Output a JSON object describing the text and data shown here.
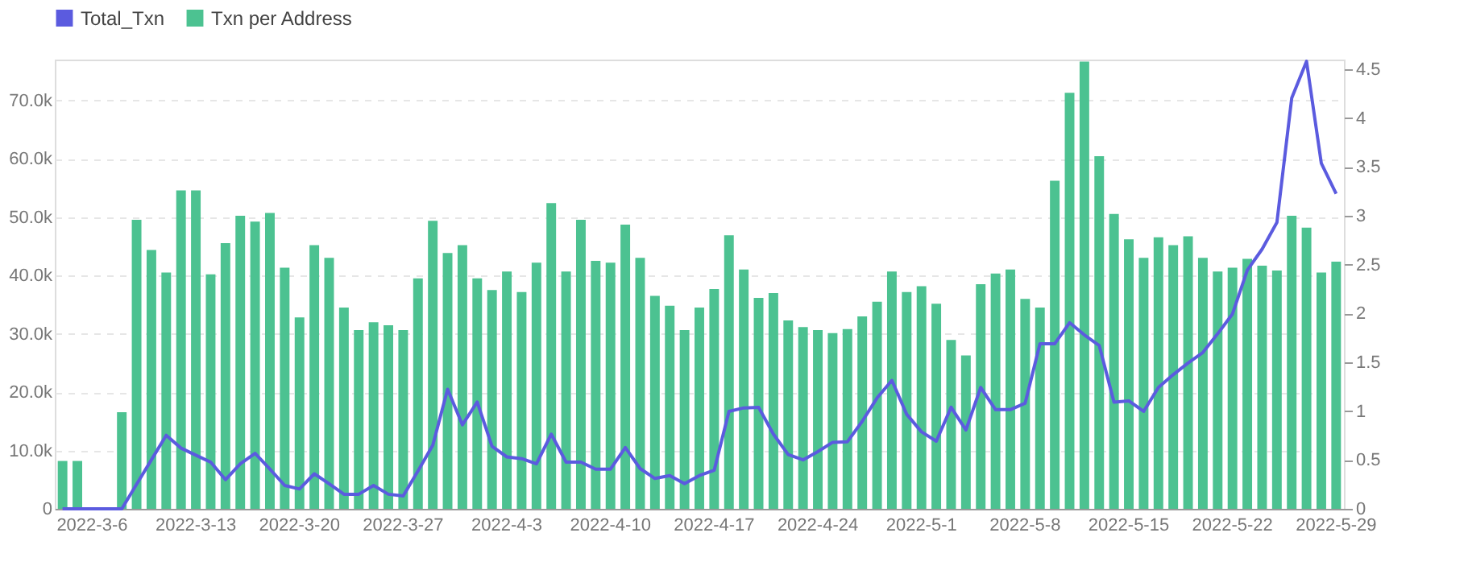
{
  "chart_data": {
    "type": "bar",
    "categories": [
      null,
      null,
      "2022-3-6",
      null,
      null,
      null,
      null,
      null,
      null,
      "2022-3-13",
      null,
      null,
      null,
      null,
      null,
      null,
      "2022-3-20",
      null,
      null,
      null,
      null,
      null,
      null,
      "2022-3-27",
      null,
      null,
      null,
      null,
      null,
      null,
      "2022-4-3",
      null,
      null,
      null,
      null,
      null,
      null,
      "2022-4-10",
      null,
      null,
      null,
      null,
      null,
      null,
      "2022-4-17",
      null,
      null,
      null,
      null,
      null,
      null,
      "2022-4-24",
      null,
      null,
      null,
      null,
      null,
      null,
      "2022-5-1",
      null,
      null,
      null,
      null,
      null,
      null,
      "2022-5-8",
      null,
      null,
      null,
      null,
      null,
      null,
      "2022-5-15",
      null,
      null,
      null,
      null,
      null,
      null,
      "2022-5-22",
      null,
      null,
      null,
      null,
      null,
      null,
      "2022-5-29"
    ],
    "series": [
      {
        "name": "Total_Txn",
        "type": "line",
        "color": "#5b5bdf",
        "values": [
          0,
          0,
          0,
          0,
          0,
          4200,
          8400,
          12600,
          10400,
          9200,
          8000,
          5000,
          7700,
          9500,
          6800,
          4000,
          3400,
          6000,
          4300,
          2500,
          2500,
          4000,
          2500,
          2200,
          6500,
          10900,
          20500,
          14400,
          18300,
          10700,
          8900,
          8600,
          7700,
          12800,
          8000,
          8000,
          6800,
          6800,
          10500,
          6900,
          5200,
          5700,
          4300,
          5700,
          6600,
          16700,
          17300,
          17400,
          12800,
          9300,
          8400,
          9800,
          11400,
          11500,
          15000,
          19000,
          22000,
          16200,
          13200,
          11600,
          17400,
          13500,
          20800,
          17000,
          17000,
          18100,
          28300,
          28300,
          31900,
          29800,
          28000,
          18300,
          18500,
          16700,
          20800,
          23000,
          25000,
          26800,
          30000,
          33400,
          40900,
          44500,
          49100,
          70400,
          76700,
          59200,
          54000
        ]
      },
      {
        "name": "Txn per Address",
        "axis": "y2",
        "color": "#4cc291",
        "values": [
          0.49,
          0.49,
          0,
          0,
          0.99,
          2.96,
          2.65,
          2.42,
          3.26,
          3.26,
          2.4,
          2.72,
          3.0,
          2.94,
          3.03,
          2.47,
          1.96,
          2.7,
          2.57,
          2.06,
          1.83,
          1.91,
          1.88,
          1.83,
          2.36,
          2.95,
          2.62,
          2.7,
          2.36,
          2.24,
          2.43,
          2.22,
          2.52,
          3.13,
          2.43,
          2.96,
          2.54,
          2.52,
          2.91,
          2.57,
          2.18,
          2.08,
          1.83,
          2.06,
          2.25,
          2.8,
          2.45,
          2.16,
          2.21,
          1.93,
          1.86,
          1.83,
          1.8,
          1.84,
          1.97,
          2.12,
          2.43,
          2.22,
          2.28,
          2.1,
          1.73,
          1.57,
          2.3,
          2.41,
          2.45,
          2.15,
          2.06,
          3.36,
          4.26,
          4.58,
          3.61,
          3.02,
          2.76,
          2.57,
          2.78,
          2.7,
          2.79,
          2.57,
          2.43,
          2.47,
          2.56,
          2.49,
          2.44,
          3.0,
          2.88,
          2.42,
          2.53
        ]
      }
    ],
    "ylim": [
      0,
      77000
    ],
    "yticks": [
      0,
      {
        "value": 10000,
        "label": "10.0k"
      },
      {
        "value": 20000,
        "label": "20.0k"
      },
      {
        "value": 30000,
        "label": "30.0k"
      },
      {
        "value": 40000,
        "label": "40.0k"
      },
      {
        "value": 50000,
        "label": "50.0k"
      },
      {
        "value": 60000,
        "label": "60.0k"
      },
      {
        "value": 70000,
        "label": "70.0k"
      }
    ],
    "y2lim": [
      0,
      4.6
    ],
    "y2ticks": [
      0,
      0.5,
      1,
      1.5,
      2,
      2.5,
      3,
      3.5,
      4,
      4.5
    ],
    "grid": "y",
    "legend": "top left",
    "marker": "none",
    "line_style": "solid"
  }
}
